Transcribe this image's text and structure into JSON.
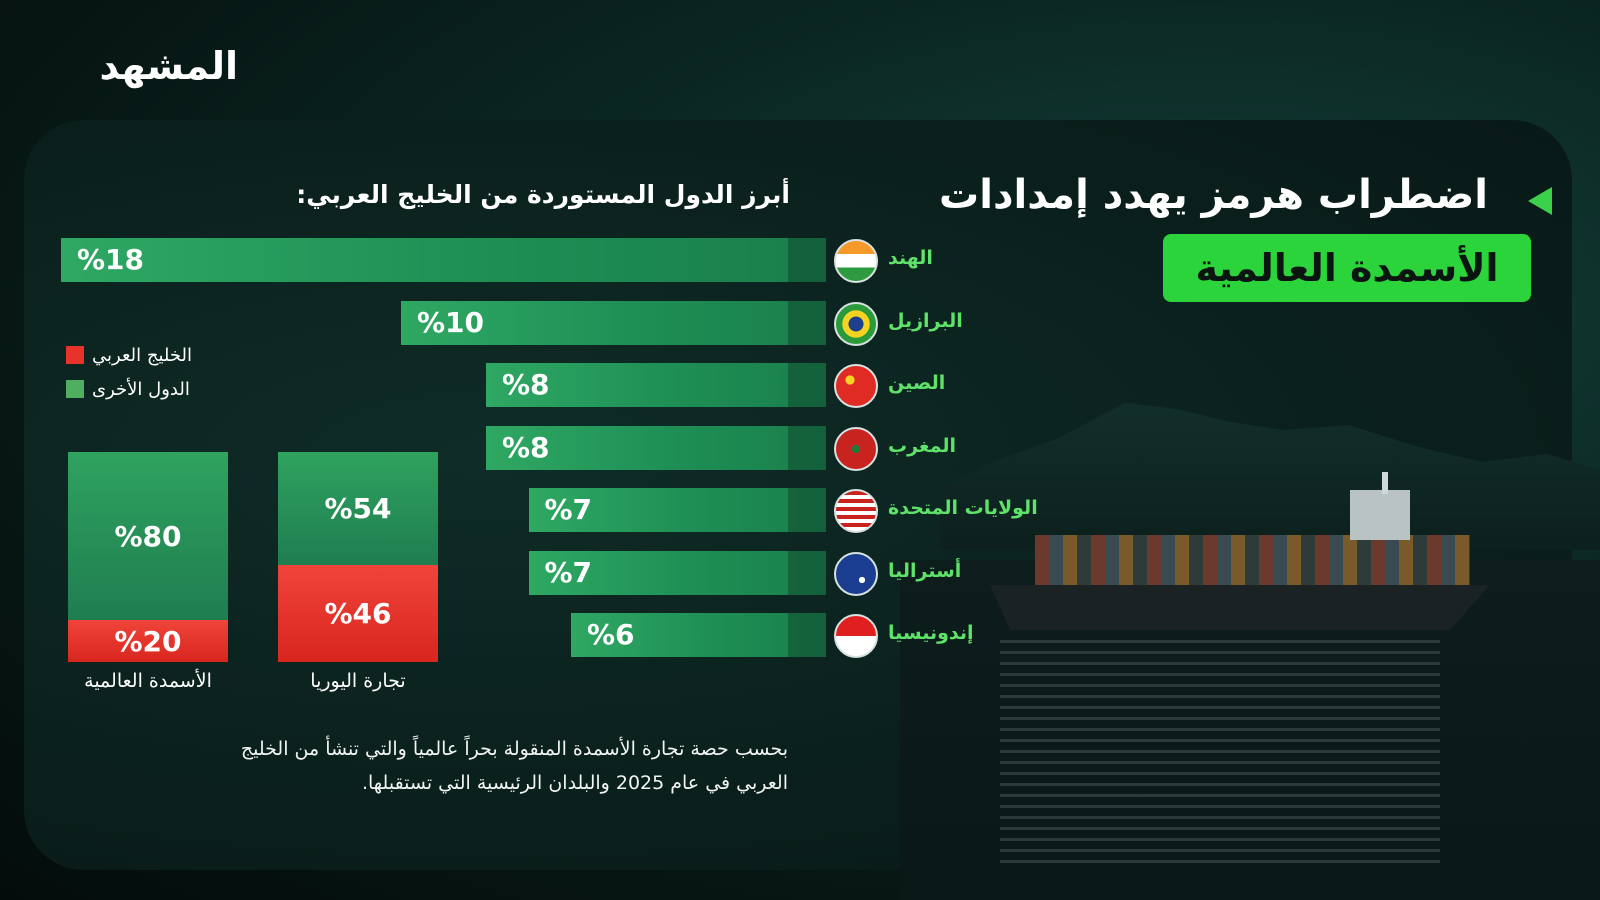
{
  "brand": {
    "logo_text": "المشهد"
  },
  "header": {
    "title_line1": "اضطراب هرمز يهدد إمدادات",
    "title_line2": "الأسمدة العالمية",
    "accent_color": "#2bd43a"
  },
  "chart_data": [
    {
      "type": "bar",
      "orientation": "horizontal",
      "title": "أبرز الدول المستوردة من الخليج العربي:",
      "categories": [
        "الهند",
        "البرازيل",
        "الصين",
        "المغرب",
        "الولايات المتحدة",
        "أستراليا",
        "إندونيسيا"
      ],
      "values": [
        18,
        10,
        8,
        8,
        7,
        7,
        6
      ],
      "value_labels": [
        "%18",
        "%10",
        "%8",
        "%8",
        "%7",
        "%7",
        "%6"
      ],
      "flag_icons": [
        "india-flag-icon",
        "brazil-flag-icon",
        "china-flag-icon",
        "morocco-flag-icon",
        "usa-flag-icon",
        "australia-flag-icon",
        "indonesia-flag-icon"
      ],
      "bar_color": "#2fa863"
    },
    {
      "type": "bar",
      "stacked": true,
      "categories": [
        "الأسمدة العالمية",
        "تجارة اليوريا"
      ],
      "series": [
        {
          "name": "الخليج العربي",
          "values": [
            20,
            46
          ],
          "value_labels": [
            "%20",
            "%46"
          ],
          "color": "#e8322a"
        },
        {
          "name": "الدول الأخرى",
          "values": [
            80,
            54
          ],
          "value_labels": [
            "%80",
            "%54"
          ],
          "color": "#2fa35f"
        }
      ],
      "ylim": [
        0,
        100
      ],
      "legend": {
        "position": "top-left",
        "entries": [
          {
            "label": "الخليج العربي",
            "color": "#e8322a"
          },
          {
            "label": "الدول الأخرى",
            "color": "#4fae5f"
          }
        ]
      }
    }
  ],
  "footnote": "بحسب حصة تجارة الأسمدة المنقولة بحراً عالمياً والتي تنشأ من الخليج العربي في عام 2025 والبلدان الرئيسية التي تستقبلها."
}
